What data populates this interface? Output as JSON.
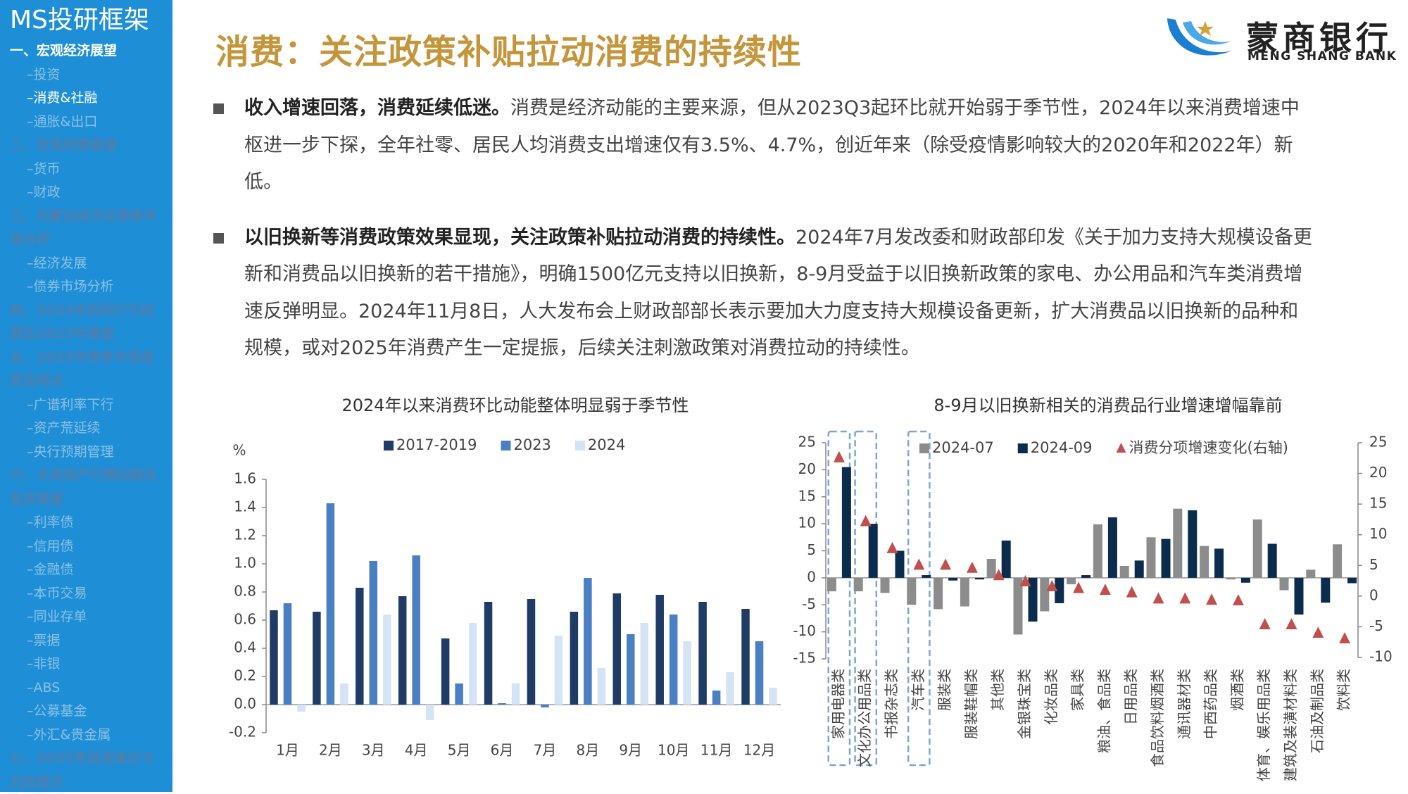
{
  "sidebar": {
    "title": "MS投研框架",
    "sections": [
      {
        "title": "一、宏观经济展望",
        "items": [
          "–投资",
          "–消费&社融",
          "–通胀&出口"
        ]
      },
      {
        "title": "二、宏观政策展望",
        "items": [
          "–货币",
          "–财政"
        ]
      },
      {
        "title": "三、内蒙古经济及债券市场分析",
        "items": [
          "–经济发展",
          "–债券市场分析"
        ]
      },
      {
        "title": "四、2024年机构行为回顾及2025年展望",
        "items": []
      },
      {
        "title": "五、2025年债券市场趋势及特点",
        "items": [
          "–广谱利率下行",
          "–资产荒延续",
          "–央行预期管理"
        ]
      },
      {
        "title": "六、大类资产行情回顾及投资展望",
        "items": [
          "–利率债",
          "–信用债",
          "–金融债",
          "–本币交易",
          "–同业存单",
          "–票据",
          "–非银",
          "–ABS",
          "–公募基金",
          "–外汇&贵金属"
        ]
      },
      {
        "title": "七、2025年投资建议与风险提示",
        "items": []
      }
    ]
  },
  "header": {
    "title": "消费：关注政策补贴拉动消费的持续性",
    "logo_name": "蒙商银行",
    "logo_english": "MENG SHANG BANK"
  },
  "bullets": [
    {
      "lead": "收入增速回落，消费延续低迷。",
      "text": "消费是经济动能的主要来源，但从2023Q3起环比就开始弱于季节性，2024年以来消费增速中枢进一步下探，全年社零、居民人均消费支出增速仅有3.5%、4.7%，创近年来（除受疫情影响较大的2020年和2022年）新低。"
    },
    {
      "lead": "以旧换新等消费政策效果显现，关注政策补贴拉动消费的持续性。",
      "text": "2024年7月发改委和财政部印发《关于加力支持大规模设备更新和消费品以旧换新的若干措施》，明确1500亿元支持以旧换新，8-9月受益于以旧换新政策的家电、办公用品和汽车类消费增速反弹明显。2024年11月8日，人大发布会上财政部部长表示要加大力度支持大规模设备更新，扩大消费品以旧换新的品种和规模，或对2025年消费产生一定提振，后续关注刺激政策对消费拉动的持续性。"
    }
  ],
  "chart_data": [
    {
      "type": "bar",
      "title": "2024年以来消费环比动能整体明显弱于季节性",
      "y_label": "%",
      "categories": [
        "1月",
        "2月",
        "3月",
        "4月",
        "5月",
        "6月",
        "7月",
        "8月",
        "9月",
        "10月",
        "11月",
        "12月"
      ],
      "series": [
        {
          "name": "2017-2019",
          "color": "#1f3b66",
          "values": [
            0.67,
            0.66,
            0.83,
            0.77,
            0.47,
            0.73,
            0.75,
            0.66,
            0.79,
            0.78,
            0.73,
            0.68
          ]
        },
        {
          "name": "2023",
          "color": "#4a7fc3",
          "values": [
            0.72,
            1.43,
            1.02,
            1.06,
            0.15,
            0.01,
            -0.02,
            0.9,
            0.5,
            0.64,
            0.1,
            0.45
          ]
        },
        {
          "name": "2024",
          "color": "#d5e4f4",
          "values": [
            -0.05,
            0.15,
            0.64,
            -0.11,
            0.58,
            0.15,
            0.49,
            0.26,
            0.58,
            0.45,
            0.23,
            0.12
          ]
        }
      ],
      "ylim": [
        -0.2,
        1.6
      ],
      "yticks": [
        -0.2,
        {
          "value": 0,
          "label": "0.0"
        },
        0.2,
        0.4,
        0.6,
        0.8,
        {
          "value": 1,
          "label": "1.0"
        },
        1.2,
        1.4,
        1.6
      ],
      "legend": "top",
      "grid": false
    },
    {
      "type": "bar",
      "title": "8-9月以旧换新相关的消费品行业增速增幅靠前",
      "categories": [
        "家用电器类",
        "文化办公用品类",
        "书报杂志类",
        "汽车类",
        "服装类",
        "服装鞋帽类",
        "其他类",
        "金银珠宝类",
        "化妆品类",
        "家具类",
        "粮油、食品类",
        "日用品类",
        "食品饮料烟酒类",
        "通讯器材类",
        "中西药品类",
        "烟酒类",
        "体育、娱乐用品类",
        "建筑及装潢材料类",
        "石油及制品类",
        "饮料类"
      ],
      "series": [
        {
          "name": "2024-07",
          "color": "#8c8c8c",
          "values": [
            -2.5,
            -2.5,
            -2.8,
            -5,
            -5.8,
            -5.3,
            3.5,
            -10.5,
            -6.2,
            -1.2,
            9.9,
            2.2,
            7.5,
            12.8,
            5.9,
            -0.3,
            10.8,
            -2.3,
            1.5,
            6.2
          ]
        },
        {
          "name": "2024-09",
          "color": "#0b2c4d",
          "values": [
            20.5,
            10,
            5,
            0.5,
            -0.5,
            -0.3,
            6.9,
            -8.1,
            -4.7,
            0.5,
            11.2,
            3.2,
            7.2,
            12.5,
            5.4,
            -0.9,
            6.3,
            -6.8,
            -4.6,
            -1
          ]
        },
        {
          "name": "消费分项增速变化(右轴)",
          "color": "#c0504d",
          "type": "scatter",
          "marker": "triangle",
          "axis": "y2",
          "values": [
            22.6,
            12.2,
            7.8,
            5.1,
            5.1,
            4.6,
            3.4,
            2.4,
            1.6,
            1.3,
            1.0,
            0.6,
            -0.4,
            -0.4,
            -0.6,
            -0.7,
            -4.6,
            -4.6,
            -6.0,
            -6.9
          ]
        }
      ],
      "ylim": [
        -15,
        25
      ],
      "yticks": [
        -15,
        -10,
        -5,
        0,
        5,
        10,
        15,
        20,
        25
      ],
      "y2lim": [
        -10,
        25
      ],
      "y2ticks": [
        -10,
        -5,
        0,
        5,
        10,
        15,
        20,
        25
      ],
      "legend": "top",
      "grid": false
    }
  ]
}
